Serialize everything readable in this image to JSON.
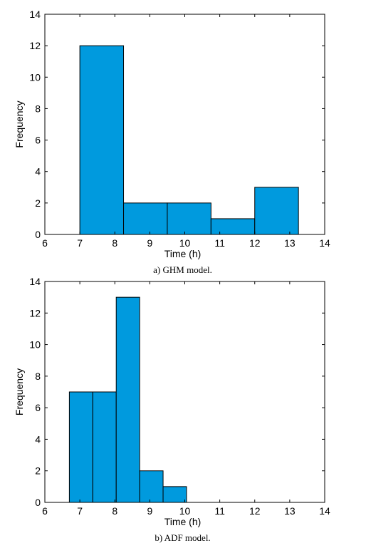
{
  "bar_color": "#009ADE",
  "chart_data": [
    {
      "type": "bar",
      "title": "",
      "xlabel": "Time (h)",
      "ylabel": "Frequency",
      "caption": "a) GHM model.",
      "xlim": [
        6,
        14
      ],
      "ylim": [
        0,
        14
      ],
      "xticks": [
        6,
        7,
        8,
        9,
        10,
        11,
        12,
        13,
        14
      ],
      "yticks": [
        0,
        2,
        4,
        6,
        8,
        10,
        12,
        14
      ],
      "grid": false,
      "bins": [
        {
          "x0": 7.0,
          "x1": 8.25,
          "value": 12
        },
        {
          "x0": 8.25,
          "x1": 9.5,
          "value": 2
        },
        {
          "x0": 9.5,
          "x1": 10.75,
          "value": 2
        },
        {
          "x0": 10.75,
          "x1": 12.0,
          "value": 1
        },
        {
          "x0": 12.0,
          "x1": 13.25,
          "value": 3
        }
      ]
    },
    {
      "type": "bar",
      "title": "",
      "xlabel": "Time (h)",
      "ylabel": "Frequency",
      "caption": "b) ADF model.",
      "xlim": [
        6,
        14
      ],
      "ylim": [
        0,
        14
      ],
      "xticks": [
        6,
        7,
        8,
        9,
        10,
        11,
        12,
        13,
        14
      ],
      "yticks": [
        0,
        2,
        4,
        6,
        8,
        10,
        12,
        14
      ],
      "grid": false,
      "bins": [
        {
          "x0": 6.7,
          "x1": 7.37,
          "value": 7
        },
        {
          "x0": 7.37,
          "x1": 8.04,
          "value": 7
        },
        {
          "x0": 8.04,
          "x1": 8.71,
          "value": 13
        },
        {
          "x0": 8.71,
          "x1": 9.38,
          "value": 2
        },
        {
          "x0": 9.38,
          "x1": 10.05,
          "value": 1
        }
      ]
    }
  ]
}
